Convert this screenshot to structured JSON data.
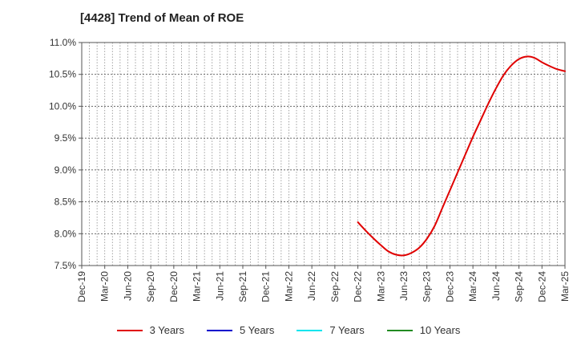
{
  "chart_data": {
    "type": "line",
    "title": "[4428]  Trend of Mean of ROE",
    "xlabel": "",
    "ylabel": "",
    "x_ticks": [
      "Dec-19",
      "Mar-20",
      "Jun-20",
      "Sep-20",
      "Dec-20",
      "Mar-21",
      "Jun-21",
      "Sep-21",
      "Dec-21",
      "Mar-22",
      "Jun-22",
      "Sep-22",
      "Dec-22",
      "Mar-23",
      "Jun-23",
      "Sep-23",
      "Dec-23",
      "Mar-24",
      "Jun-24",
      "Sep-24",
      "Dec-24",
      "Mar-25"
    ],
    "y_ticks": [
      "7.5%",
      "8.0%",
      "8.5%",
      "9.0%",
      "9.5%",
      "10.0%",
      "10.5%",
      "11.0%"
    ],
    "ylim": [
      7.5,
      11.0
    ],
    "grid": true,
    "legend_position": "bottom",
    "series": [
      {
        "name": "3 Years",
        "color": "#e00000",
        "points": [
          [
            "Dec-22",
            8.18
          ],
          [
            "Jan-23",
            8.05
          ],
          [
            "Feb-23",
            7.93
          ],
          [
            "Mar-23",
            7.82
          ],
          [
            "Apr-23",
            7.72
          ],
          [
            "May-23",
            7.67
          ],
          [
            "Jun-23",
            7.66
          ],
          [
            "Jul-23",
            7.7
          ],
          [
            "Aug-23",
            7.78
          ],
          [
            "Sep-23",
            7.92
          ],
          [
            "Oct-23",
            8.12
          ],
          [
            "Nov-23",
            8.4
          ],
          [
            "Dec-23",
            8.68
          ],
          [
            "Jan-24",
            8.96
          ],
          [
            "Feb-24",
            9.24
          ],
          [
            "Mar-24",
            9.52
          ],
          [
            "Apr-24",
            9.78
          ],
          [
            "May-24",
            10.04
          ],
          [
            "Jun-24",
            10.28
          ],
          [
            "Jul-24",
            10.49
          ],
          [
            "Aug-24",
            10.64
          ],
          [
            "Sep-24",
            10.74
          ],
          [
            "Oct-24",
            10.78
          ],
          [
            "Nov-24",
            10.76
          ],
          [
            "Dec-24",
            10.69
          ],
          [
            "Jan-25",
            10.63
          ],
          [
            "Feb-25",
            10.58
          ],
          [
            "Mar-25",
            10.55
          ]
        ]
      },
      {
        "name": "5 Years",
        "color": "#0000cc",
        "points": []
      },
      {
        "name": "7 Years",
        "color": "#00e5ee",
        "points": []
      },
      {
        "name": "10 Years",
        "color": "#228b22",
        "points": []
      }
    ]
  }
}
